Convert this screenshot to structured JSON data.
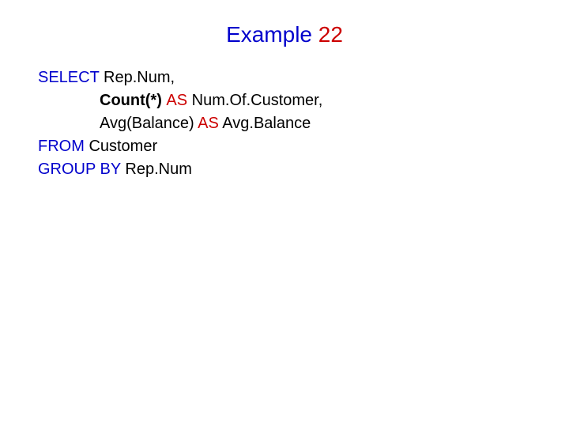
{
  "slide": {
    "title_prefix": "Example ",
    "title_number": "22",
    "title_color_prefix": "#0000cc",
    "title_color_number": "#cc0000",
    "title_fontsize": 28,
    "code_fontsize": 20,
    "background_color": "#ffffff",
    "code": {
      "line1": {
        "select": "SELECT ",
        "col1": "Rep.Num,"
      },
      "line2": {
        "count": "Count(*) ",
        "as": "AS ",
        "alias": "Num.Of.Customer,"
      },
      "line3": {
        "avg": "Avg(Balance) ",
        "as": "AS ",
        "alias": "Avg.Balance"
      },
      "line4": {
        "from": "FROM ",
        "table": "Customer"
      },
      "line5": {
        "groupby": "GROUP BY ",
        "col": "Rep.Num"
      }
    },
    "colors": {
      "keyword_blue": "#0000cc",
      "keyword_red": "#cc0000",
      "text_black": "#000000"
    }
  }
}
